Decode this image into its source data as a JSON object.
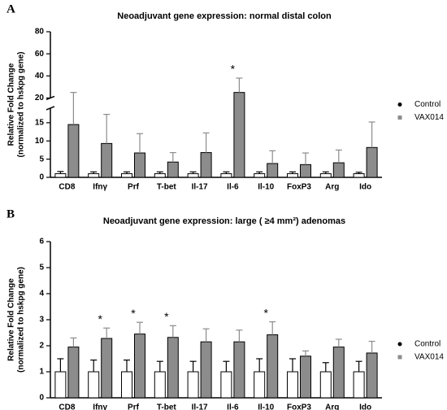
{
  "chart_data": [
    {
      "type": "bar",
      "panel": "A",
      "title": "Neoadjuvant gene expression: normal distal colon",
      "y_label": [
        "Relative Fold Change",
        "(normalized to hskpg gene)"
      ],
      "categories": [
        "CD8",
        "Ifnγ",
        "Prf",
        "T-bet",
        "Il-17",
        "Il-6",
        "Il-10",
        "FoxP3",
        "Arg",
        "Ido"
      ],
      "series": [
        {
          "name": "Control",
          "color": "#ffffff",
          "point_color": "#000000",
          "values": [
            1,
            1,
            1,
            1,
            1,
            1,
            1,
            1,
            1,
            1
          ],
          "errors": [
            0.6,
            0.5,
            0.5,
            0.5,
            0.5,
            0.5,
            0.5,
            0.5,
            0.5,
            0.4
          ]
        },
        {
          "name": "VAX014",
          "color": "#8c8c8c",
          "point_color": "#8c8c8c",
          "values": [
            14.5,
            9.3,
            6.7,
            4.2,
            6.8,
            25,
            3.8,
            3.5,
            4,
            8.2
          ],
          "errors": [
            10.5,
            8,
            5.3,
            2.6,
            5.4,
            13,
            3.5,
            3.2,
            3.5,
            7
          ]
        }
      ],
      "significance": [
        null,
        null,
        null,
        null,
        null,
        "*",
        null,
        null,
        null,
        null
      ],
      "ylim": [
        0,
        80
      ],
      "y_break": [
        19,
        20
      ],
      "yticks": [
        0,
        5,
        10,
        15,
        20,
        40,
        60,
        80
      ],
      "legend": "right"
    },
    {
      "type": "bar",
      "panel": "B",
      "title": "Neoadjuvant gene expression: large ( ≥4 mm²) adenomas",
      "y_label": [
        "Relative Fold Change",
        "(normalized to hskpg gene)"
      ],
      "categories": [
        "CD8",
        "Ifnγ",
        "Prf",
        "T-bet",
        "Il-17",
        "Il-6",
        "Il-10",
        "FoxP3",
        "Arg",
        "Ido"
      ],
      "series": [
        {
          "name": "Control",
          "color": "#ffffff",
          "point_color": "#000000",
          "values": [
            1,
            1,
            1,
            1,
            1,
            1,
            1,
            1,
            1,
            1
          ],
          "errors": [
            0.5,
            0.45,
            0.45,
            0.4,
            0.4,
            0.4,
            0.5,
            0.5,
            0.35,
            0.4
          ]
        },
        {
          "name": "VAX014",
          "color": "#8c8c8c",
          "point_color": "#8c8c8c",
          "values": [
            1.95,
            2.28,
            2.45,
            2.32,
            2.15,
            2.15,
            2.42,
            1.6,
            1.95,
            1.72
          ],
          "errors": [
            0.35,
            0.4,
            0.45,
            0.45,
            0.5,
            0.45,
            0.5,
            0.2,
            0.3,
            0.45
          ]
        }
      ],
      "significance": [
        null,
        "*",
        "*",
        "*",
        null,
        null,
        "*",
        null,
        null,
        null
      ],
      "ylim": [
        0,
        6
      ],
      "yticks": [
        0,
        1,
        2,
        3,
        4,
        5,
        6
      ],
      "legend": "right"
    }
  ]
}
